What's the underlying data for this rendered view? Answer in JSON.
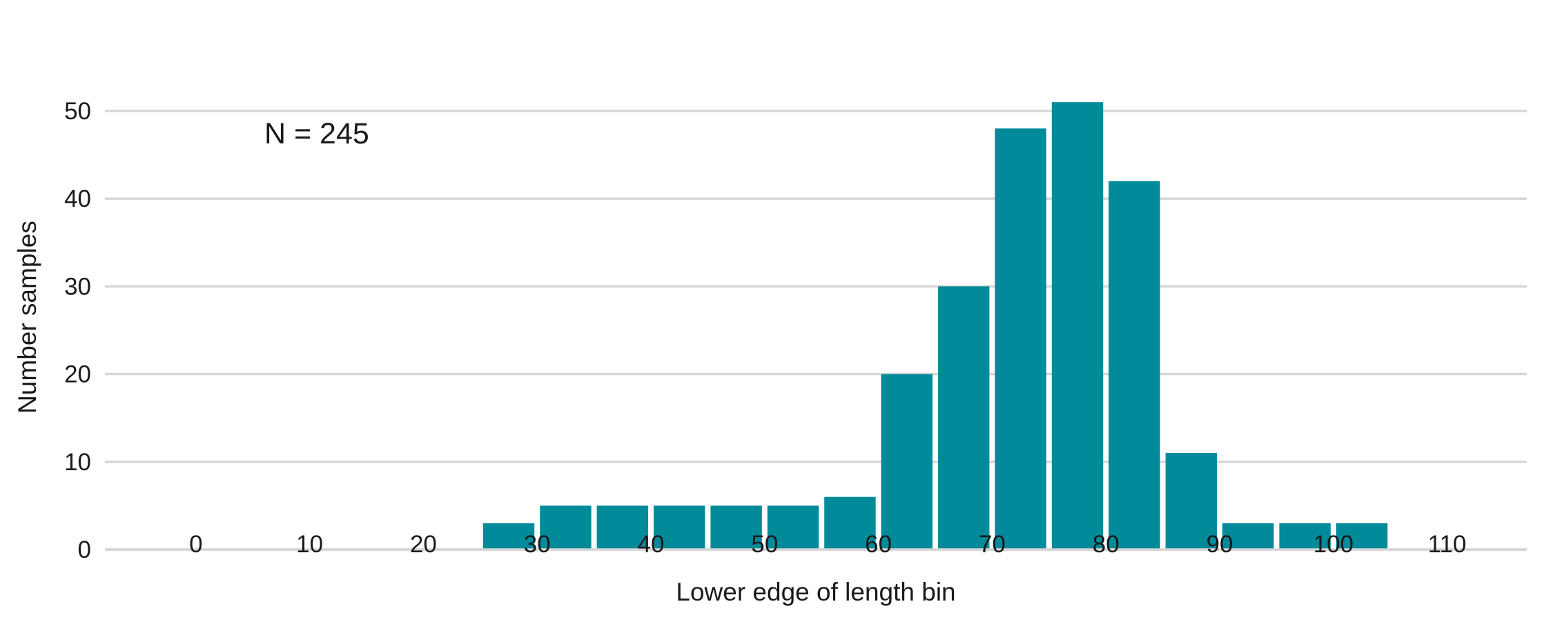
{
  "chart_data": {
    "type": "bar",
    "title": "",
    "xlabel": "Lower edge of length bin",
    "ylabel": "Number samples",
    "annotation": "N = 245",
    "bar_color": "#008a9a",
    "grid": "horizontal",
    "ylim": [
      0,
      54
    ],
    "yticks": [
      0,
      10,
      20,
      30,
      40,
      50
    ],
    "xlim": [
      -8,
      117
    ],
    "xticks": [
      0,
      10,
      20,
      30,
      40,
      50,
      60,
      70,
      80,
      90,
      100,
      110
    ],
    "bin_width": 5,
    "x": [
      25,
      30,
      35,
      40,
      45,
      50,
      55,
      60,
      65,
      70,
      75,
      80,
      85,
      90,
      95,
      100
    ],
    "values": [
      3,
      5,
      5,
      5,
      5,
      5,
      6,
      20,
      30,
      48,
      51,
      42,
      11,
      3,
      3,
      3
    ]
  }
}
